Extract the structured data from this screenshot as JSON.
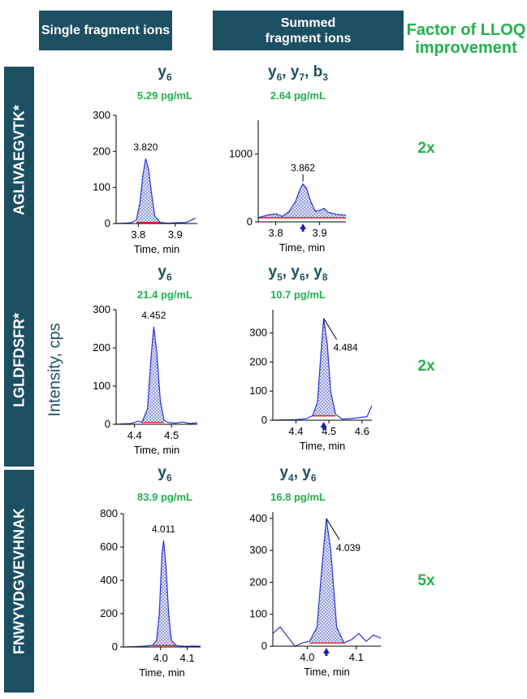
{
  "headers": {
    "single": "Single fragment ions",
    "summed": "Summed fragment ions",
    "factor": "Factor of LLOQ improvement"
  },
  "y_axis_title": "Intensity, cps",
  "rows": [
    {
      "peptide": "AGLIVAEGVTK*",
      "factor": "2x",
      "single": {
        "ion_base": "y",
        "ion_subs": [
          "6"
        ],
        "lloq": "5.29 pg/mL"
      },
      "summed": {
        "ion_base": "y",
        "ion_label_parts": [
          [
            "y",
            "6"
          ],
          [
            "y",
            "7"
          ],
          [
            "b",
            "3"
          ]
        ],
        "lloq": "2.64 pg/mL"
      }
    },
    {
      "peptide": "LGLDFDSFR*",
      "factor": "2x",
      "single": {
        "ion_label_parts": [
          [
            "y",
            "6"
          ]
        ],
        "lloq": "21.4 pg/mL"
      },
      "summed": {
        "ion_label_parts": [
          [
            "y",
            "5"
          ],
          [
            "y",
            "6"
          ],
          [
            "y",
            "8"
          ]
        ],
        "lloq": "10.7 pg/mL"
      }
    },
    {
      "peptide": "FNWYVDGVEVHNAK",
      "factor": "5x",
      "single": {
        "ion_label_parts": [
          [
            "y",
            "6"
          ]
        ],
        "lloq": "83.9 pg/mL"
      },
      "summed": {
        "ion_label_parts": [
          [
            "y",
            "4"
          ],
          [
            "y",
            "6"
          ]
        ],
        "lloq": "16.8 pg/mL"
      }
    }
  ],
  "chart_data": [
    {
      "type": "line",
      "xlabel": "Time, min",
      "ylabel": "",
      "xlim": [
        3.74,
        3.96
      ],
      "ylim": [
        0,
        300
      ],
      "xticks": [
        3.8,
        3.9
      ],
      "yticks": [
        0,
        100,
        200,
        300
      ],
      "peak_label": "3.820",
      "peak_x": 3.82,
      "peak_y": 180,
      "series": [
        {
          "x": [
            3.74,
            3.76,
            3.78,
            3.795,
            3.805,
            3.812,
            3.82,
            3.828,
            3.835,
            3.845,
            3.86,
            3.88,
            3.9,
            3.93,
            3.945,
            3.955
          ],
          "y": [
            0,
            1,
            2,
            10,
            60,
            130,
            180,
            150,
            90,
            20,
            3,
            1,
            2,
            3,
            10,
            15
          ]
        }
      ]
    },
    {
      "type": "line",
      "xlabel": "Time, min",
      "ylabel": "",
      "xlim": [
        3.76,
        3.96
      ],
      "ylim": [
        0,
        1500
      ],
      "xticks": [
        3.8,
        3.9
      ],
      "yticks": [
        0,
        1000
      ],
      "peak_label": "3.862",
      "peak_x": 3.862,
      "peak_y": 560,
      "series": [
        {
          "x": [
            3.76,
            3.78,
            3.8,
            3.815,
            3.83,
            3.845,
            3.855,
            3.862,
            3.87,
            3.88,
            3.89,
            3.9,
            3.91,
            3.92,
            3.94,
            3.96
          ],
          "y": [
            60,
            100,
            120,
            80,
            150,
            300,
            480,
            560,
            500,
            300,
            160,
            170,
            200,
            140,
            110,
            100
          ]
        }
      ]
    },
    {
      "type": "line",
      "xlabel": "Time, min",
      "ylabel": "",
      "xlim": [
        4.35,
        4.57
      ],
      "ylim": [
        0,
        300
      ],
      "xticks": [
        4.4,
        4.5
      ],
      "yticks": [
        0,
        100,
        200,
        300
      ],
      "peak_label": "4.452",
      "peak_x": 4.452,
      "peak_y": 255,
      "series": [
        {
          "x": [
            4.35,
            4.37,
            4.39,
            4.41,
            4.42,
            4.435,
            4.445,
            4.452,
            4.46,
            4.47,
            4.48,
            4.49,
            4.51,
            4.53,
            4.55,
            4.57
          ],
          "y": [
            0,
            1,
            2,
            8,
            5,
            40,
            180,
            255,
            190,
            60,
            10,
            5,
            3,
            6,
            2,
            4
          ]
        }
      ]
    },
    {
      "type": "line",
      "xlabel": "Time, min",
      "ylabel": "",
      "xlim": [
        4.33,
        4.63
      ],
      "ylim": [
        0,
        380
      ],
      "xticks": [
        4.4,
        4.5,
        4.6
      ],
      "yticks": [
        0,
        100,
        200,
        300
      ],
      "peak_label": "4.484",
      "peak_x": 4.484,
      "peak_y": 350,
      "series": [
        {
          "x": [
            4.33,
            4.36,
            4.4,
            4.43,
            4.45,
            4.465,
            4.475,
            4.484,
            4.495,
            4.505,
            4.52,
            4.54,
            4.57,
            4.6,
            4.615,
            4.63
          ],
          "y": [
            0,
            1,
            2,
            5,
            15,
            60,
            220,
            350,
            260,
            100,
            20,
            4,
            6,
            10,
            12,
            50
          ]
        }
      ]
    },
    {
      "type": "line",
      "xlabel": "Time, min",
      "ylabel": "",
      "xlim": [
        3.86,
        4.15
      ],
      "ylim": [
        0,
        800
      ],
      "xticks": [
        4.0,
        4.1
      ],
      "yticks": [
        0,
        200,
        400,
        600,
        800
      ],
      "peak_label": "4.011",
      "peak_x": 4.011,
      "peak_y": 640,
      "series": [
        {
          "x": [
            3.86,
            3.9,
            3.94,
            3.97,
            3.985,
            3.995,
            4.005,
            4.011,
            4.02,
            4.03,
            4.04,
            4.06,
            4.09,
            4.12,
            4.14,
            4.15
          ],
          "y": [
            0,
            2,
            5,
            10,
            40,
            200,
            560,
            640,
            480,
            200,
            40,
            8,
            4,
            6,
            5,
            4
          ]
        }
      ]
    },
    {
      "type": "line",
      "xlabel": "Time, min",
      "ylabel": "",
      "xlim": [
        3.93,
        4.15
      ],
      "ylim": [
        0,
        420
      ],
      "xticks": [
        4.0,
        4.1
      ],
      "yticks": [
        0,
        100,
        200,
        300,
        400
      ],
      "peak_label": "4.039",
      "peak_x": 4.039,
      "peak_y": 400,
      "series": [
        {
          "x": [
            3.93,
            3.945,
            3.96,
            3.975,
            3.99,
            4.005,
            4.02,
            4.03,
            4.039,
            4.048,
            4.06,
            4.075,
            4.09,
            4.105,
            4.12,
            4.135,
            4.15
          ],
          "y": [
            40,
            60,
            30,
            0,
            10,
            15,
            60,
            250,
            400,
            300,
            60,
            10,
            20,
            40,
            15,
            35,
            25
          ]
        }
      ]
    }
  ]
}
